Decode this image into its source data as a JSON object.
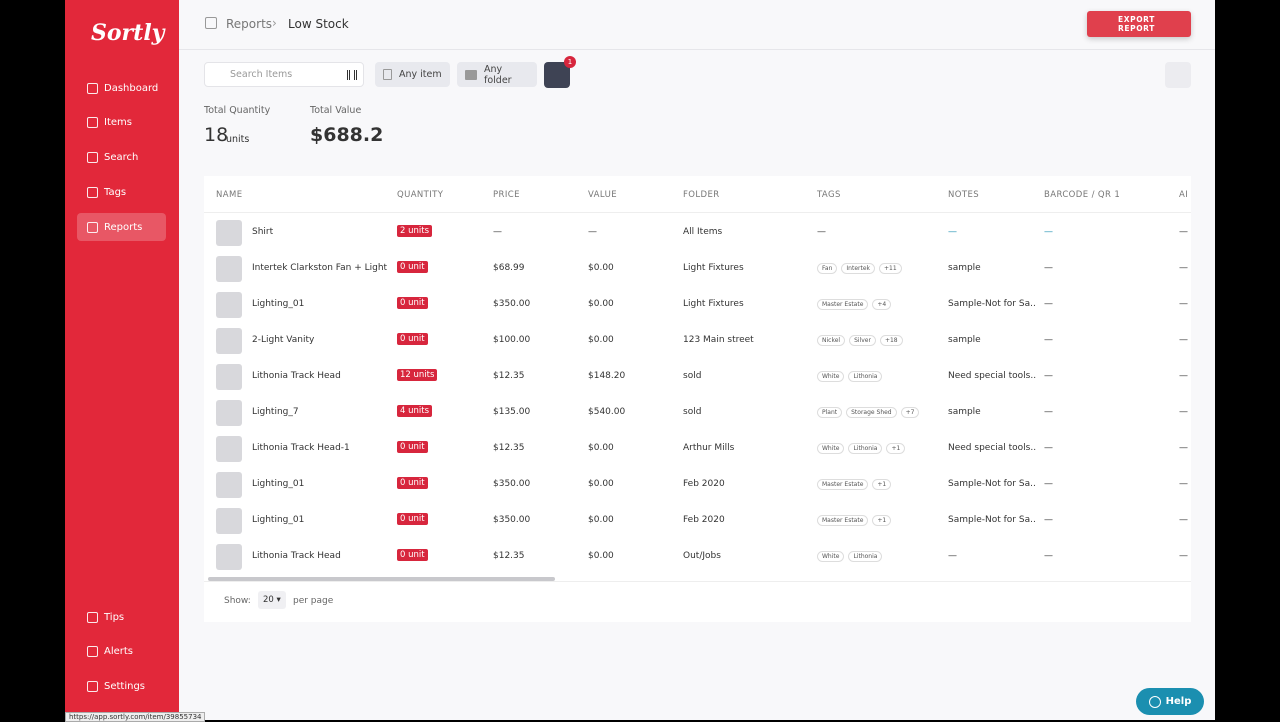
{
  "logo": "Sortly",
  "nav": [
    "Dashboard",
    "Items",
    "Search",
    "Tags",
    "Reports"
  ],
  "nav_bottom": [
    "Tips",
    "Alerts",
    "Settings"
  ],
  "breadcrumb": [
    "Reports",
    "Low Stock"
  ],
  "export_button": "EXPORT REPORT",
  "search_placeholder": "Search Items",
  "filters": [
    "Any item",
    "Any folder"
  ],
  "filter_badge": "1",
  "summary": {
    "total_quantity_label": "Total Quantity",
    "total_quantity": "18",
    "total_quantity_unit": "units",
    "total_value_label": "Total Value",
    "total_value": "$688.2"
  },
  "table": {
    "headers": [
      "NAME",
      "QUANTITY",
      "PRICE",
      "VALUE",
      "FOLDER",
      "TAGS",
      "NOTES",
      "BARCODE / QR 1",
      "AI"
    ],
    "rows": [
      {
        "name": "Shirt",
        "quantity": "2 units",
        "price": "—",
        "value": "—",
        "folder": "All Items",
        "tags": [
          "—"
        ],
        "notes": "—",
        "barcode": "—",
        "extra": "—"
      },
      {
        "name": "Intertek Clarkston Fan + Light ...",
        "quantity": "0 unit",
        "price": "$68.99",
        "value": "$0.00",
        "folder": "Light Fixtures",
        "tags": [
          "Fan",
          "Intertek",
          "+11"
        ],
        "notes": "sample",
        "barcode": "—",
        "extra": "—"
      },
      {
        "name": "Lighting_01",
        "quantity": "0 unit",
        "price": "$350.00",
        "value": "$0.00",
        "folder": "Light Fixtures",
        "tags": [
          "Master Estate",
          "+4"
        ],
        "notes": "Sample-Not for Sa...",
        "barcode": "—",
        "extra": "—"
      },
      {
        "name": "2-Light Vanity",
        "quantity": "0 unit",
        "price": "$100.00",
        "value": "$0.00",
        "folder": "123 Main street",
        "tags": [
          "Nickel",
          "Silver",
          "+18"
        ],
        "notes": "sample",
        "barcode": "—",
        "extra": "—"
      },
      {
        "name": "Lithonia Track Head",
        "quantity": "12 units",
        "price": "$12.35",
        "value": "$148.20",
        "folder": "sold",
        "tags": [
          "White",
          "Lithonia"
        ],
        "notes": "Need special tools...",
        "barcode": "—",
        "extra": "—"
      },
      {
        "name": "Lighting_7",
        "quantity": "4 units",
        "price": "$135.00",
        "value": "$540.00",
        "folder": "sold",
        "tags": [
          "Plant",
          "Storage Shed",
          "+7"
        ],
        "notes": "sample",
        "barcode": "—",
        "extra": "—"
      },
      {
        "name": "Lithonia Track Head-1",
        "quantity": "0 unit",
        "price": "$12.35",
        "value": "$0.00",
        "folder": "Arthur Mills",
        "tags": [
          "White",
          "Lithonia",
          "+1"
        ],
        "notes": "Need special tools...",
        "barcode": "—",
        "extra": "—"
      },
      {
        "name": "Lighting_01",
        "quantity": "0 unit",
        "price": "$350.00",
        "value": "$0.00",
        "folder": "Feb 2020",
        "tags": [
          "Master Estate",
          "+1"
        ],
        "notes": "Sample-Not for Sa...",
        "barcode": "—",
        "extra": "—"
      },
      {
        "name": "Lighting_01",
        "quantity": "0 unit",
        "price": "$350.00",
        "value": "$0.00",
        "folder": "Feb 2020",
        "tags": [
          "Master Estate",
          "+1"
        ],
        "notes": "Sample-Not for Sa...",
        "barcode": "—",
        "extra": "—"
      },
      {
        "name": "Lithonia Track Head",
        "quantity": "0 unit",
        "price": "$12.35",
        "value": "$0.00",
        "folder": "Out/Jobs",
        "tags": [
          "White",
          "Lithonia"
        ],
        "notes": "—",
        "barcode": "—",
        "extra": "—"
      }
    ]
  },
  "pagination": {
    "show_label": "Show:",
    "per_page": "20",
    "suffix": "per page"
  },
  "help_button": "Help",
  "status_url": "https://app.sortly.com/item/39855734"
}
